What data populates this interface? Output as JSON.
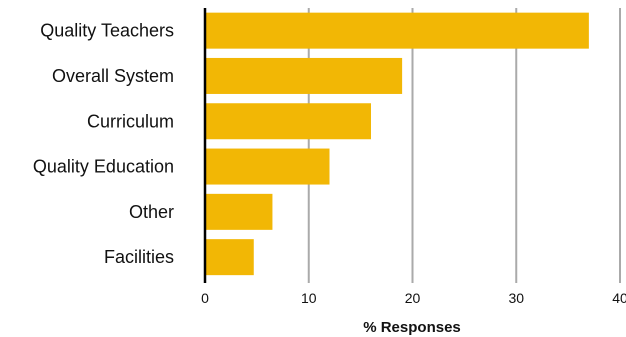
{
  "chart_data": {
    "type": "bar",
    "orientation": "horizontal",
    "title": "",
    "xlabel": "% Responses",
    "ylabel": "",
    "xlim": [
      0,
      40
    ],
    "xticks": [
      0,
      10,
      20,
      30,
      40
    ],
    "grid": true,
    "bar_color": "#F2B705",
    "grid_color": "#AAAAAA",
    "categories": [
      "Quality Teachers",
      "Overall System",
      "Curriculum",
      "Quality Education",
      "Other",
      "Facilities"
    ],
    "values": [
      37,
      19,
      16,
      12,
      6.5,
      4.7
    ]
  }
}
